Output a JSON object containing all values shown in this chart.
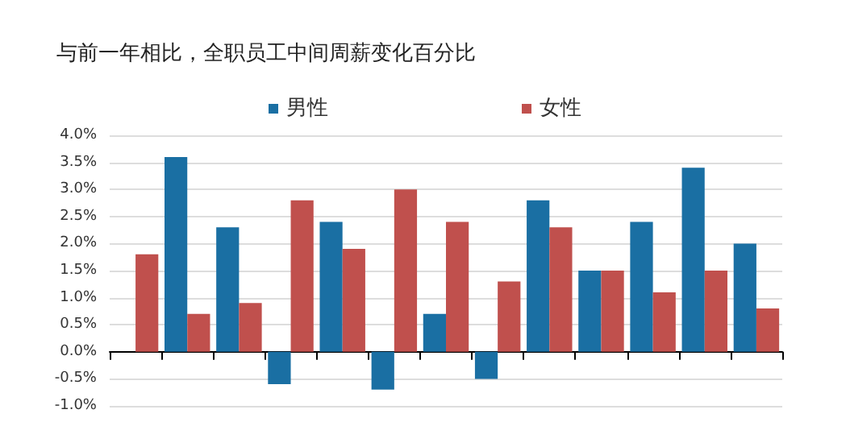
{
  "chart_data": {
    "type": "bar",
    "title": "与前一年相比，全职员工中间周薪变化百分比",
    "categories": [
      null,
      null,
      null,
      null,
      null,
      null,
      null,
      null,
      null,
      null,
      null,
      null,
      null
    ],
    "series": [
      {
        "name": "男性",
        "color": "#1a6fa3",
        "values": [
          null,
          3.6,
          2.3,
          -0.6,
          2.4,
          -0.7,
          0.7,
          -0.5,
          2.8,
          1.5,
          2.4,
          3.4,
          2.0
        ]
      },
      {
        "name": "女性",
        "color": "#c0504d",
        "values": [
          1.8,
          0.7,
          0.9,
          2.8,
          1.9,
          3.0,
          2.4,
          1.3,
          2.3,
          1.5,
          1.1,
          1.5,
          0.8
        ]
      }
    ],
    "ylim": [
      -1,
      4
    ],
    "yticks": [
      {
        "value": -1,
        "label": "-1.0%"
      },
      {
        "value": -0.5,
        "label": "-0.5%"
      },
      {
        "value": 0,
        "label": "0.0%"
      },
      {
        "value": 0.5,
        "label": "0.5%"
      },
      {
        "value": 1,
        "label": "1.0%"
      },
      {
        "value": 1.5,
        "label": "1.5%"
      },
      {
        "value": 2,
        "label": "2.0%"
      },
      {
        "value": 2.5,
        "label": "2.5%"
      },
      {
        "value": 3,
        "label": "3.0%"
      },
      {
        "value": 3.5,
        "label": "3.5%"
      },
      {
        "value": 4,
        "label": "4.0%"
      }
    ],
    "grid": "y",
    "legend": "top"
  }
}
